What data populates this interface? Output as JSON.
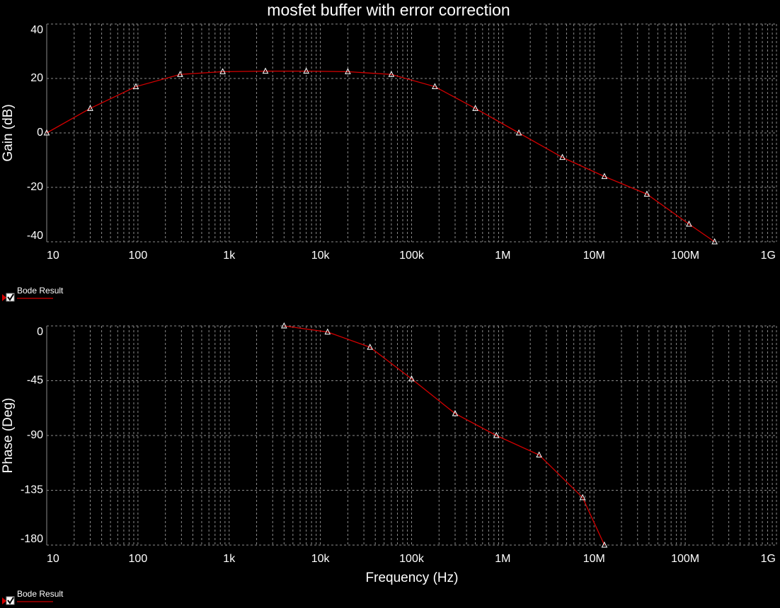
{
  "chart_data": [
    {
      "type": "line",
      "title": "mosfet buffer with error correction",
      "ylabel": "Gain (dB)",
      "xscale": "log",
      "xlim": [
        10,
        1000000000
      ],
      "xticks": [
        {
          "value": 10,
          "label": "10"
        },
        {
          "value": 100,
          "label": "100"
        },
        {
          "value": 1000,
          "label": "1k"
        },
        {
          "value": 10000,
          "label": "10k"
        },
        {
          "value": 100000,
          "label": "100k"
        },
        {
          "value": 1000000,
          "label": "1M"
        },
        {
          "value": 10000000,
          "label": "10M"
        },
        {
          "value": 100000000,
          "label": "100M"
        },
        {
          "value": 1000000000,
          "label": "1G"
        }
      ],
      "ylim": [
        -40,
        40
      ],
      "yticks": [
        -40,
        -20,
        0,
        20,
        40
      ],
      "grid": true,
      "x": [
        10,
        30,
        95,
        290,
        850,
        2500,
        7000,
        20000,
        60000,
        180000,
        500000,
        1500000,
        4500000,
        13000000,
        38000000,
        110000000,
        210000000
      ],
      "series": [
        {
          "name": "Bode Result",
          "color": "#d40000",
          "values": [
            0,
            9,
            17,
            21.5,
            22.5,
            22.7,
            22.7,
            22.5,
            21.5,
            17,
            9,
            0,
            -9,
            -16,
            -22.5,
            -33.5,
            -40
          ]
        }
      ]
    },
    {
      "type": "line",
      "ylabel": "Phase (Deg)",
      "xlabel": "Frequency (Hz)",
      "xscale": "log",
      "xlim": [
        10,
        1000000000
      ],
      "xticks": [
        {
          "value": 10,
          "label": "10"
        },
        {
          "value": 100,
          "label": "100"
        },
        {
          "value": 1000,
          "label": "1k"
        },
        {
          "value": 10000,
          "label": "10k"
        },
        {
          "value": 100000,
          "label": "100k"
        },
        {
          "value": 1000000,
          "label": "1M"
        },
        {
          "value": 10000000,
          "label": "10M"
        },
        {
          "value": 100000000,
          "label": "100M"
        },
        {
          "value": 1000000000,
          "label": "1G"
        }
      ],
      "ylim": [
        -180,
        0
      ],
      "yticks": [
        -180,
        -135,
        -90,
        -45,
        0
      ],
      "grid": true,
      "x": [
        4000,
        12000,
        35000,
        100000,
        300000,
        850000,
        2500000,
        7500000,
        13000000
      ],
      "series": [
        {
          "name": "Bode Result",
          "color": "#d40000",
          "values": [
            0,
            -5,
            -17.5,
            -43.5,
            -72,
            -90,
            -106,
            -141,
            -180
          ]
        }
      ]
    }
  ]
}
